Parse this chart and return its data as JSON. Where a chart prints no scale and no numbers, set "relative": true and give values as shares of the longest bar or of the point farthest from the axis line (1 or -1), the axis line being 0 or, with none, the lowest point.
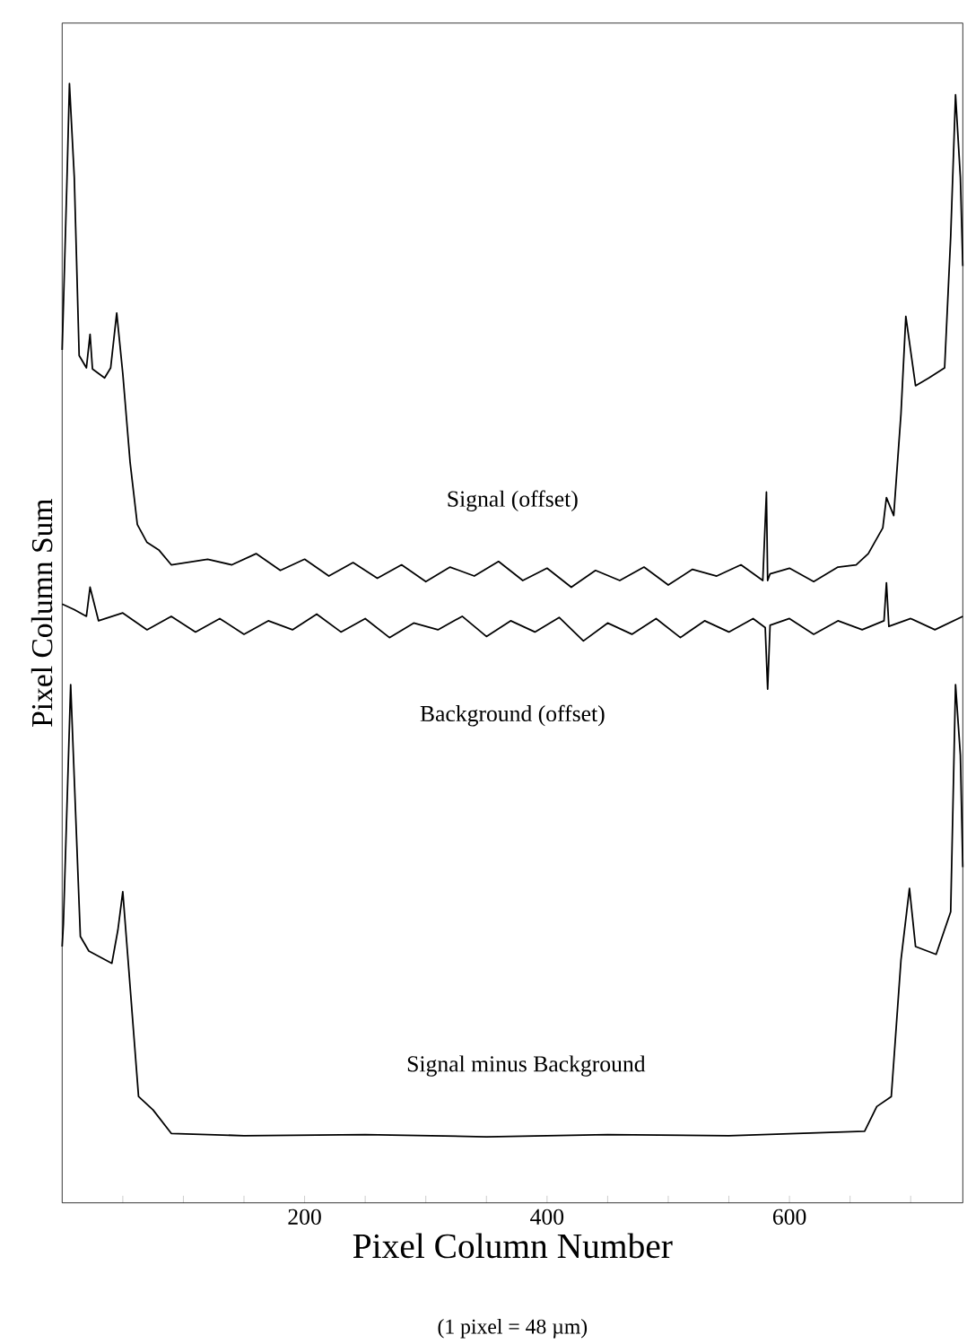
{
  "chart_data": {
    "type": "line",
    "relative": true,
    "xlabel": "Pixel Column Number",
    "ylabel": "Pixel Column Sum",
    "xlim": [
      0,
      743
    ],
    "xticks": [
      {
        "value": 50,
        "label": null
      },
      {
        "value": 100,
        "label": null
      },
      {
        "value": 150,
        "label": null
      },
      200,
      {
        "value": 250,
        "label": null
      },
      {
        "value": 300,
        "label": null
      },
      {
        "value": 350,
        "label": null
      },
      400,
      {
        "value": 450,
        "label": null
      },
      {
        "value": 500,
        "label": null
      },
      {
        "value": 550,
        "label": null
      },
      600,
      {
        "value": 650,
        "label": null
      },
      {
        "value": 700,
        "label": null
      }
    ],
    "grid": false,
    "marker": "none",
    "line_style": "solid",
    "series": [
      {
        "color": "#000000",
        "x": [
          0,
          4,
          6,
          10,
          14,
          20,
          23,
          25,
          35,
          40,
          45,
          50,
          56,
          62,
          70,
          80,
          90,
          120,
          140,
          160,
          180,
          200,
          220,
          240,
          260,
          280,
          300,
          320,
          340,
          360,
          380,
          400,
          420,
          440,
          460,
          480,
          500,
          520,
          540,
          560,
          578,
          581,
          582,
          584,
          600,
          620,
          640,
          655,
          665,
          677,
          680,
          686,
          692,
          696,
          704,
          715,
          728,
          733,
          737,
          741,
          743
        ],
        "values": [
          0.762,
          0.916,
          1.0,
          0.916,
          0.757,
          0.746,
          0.776,
          0.745,
          0.737,
          0.746,
          0.795,
          0.741,
          0.662,
          0.606,
          0.59,
          0.583,
          0.57,
          0.575,
          0.57,
          0.58,
          0.565,
          0.575,
          0.56,
          0.572,
          0.558,
          0.57,
          0.555,
          0.568,
          0.56,
          0.573,
          0.556,
          0.567,
          0.55,
          0.565,
          0.556,
          0.568,
          0.552,
          0.566,
          0.56,
          0.57,
          0.556,
          0.635,
          0.556,
          0.562,
          0.567,
          0.555,
          0.568,
          0.57,
          0.58,
          0.603,
          0.63,
          0.614,
          0.705,
          0.792,
          0.73,
          0.737,
          0.746,
          0.863,
          0.99,
          0.916,
          0.837
        ]
      },
      {
        "color": "#000000",
        "x": [
          0,
          10,
          20,
          23,
          30,
          50,
          70,
          90,
          110,
          130,
          150,
          170,
          190,
          210,
          230,
          250,
          270,
          290,
          310,
          330,
          350,
          370,
          390,
          410,
          430,
          450,
          470,
          490,
          510,
          530,
          550,
          570,
          580,
          582,
          584,
          600,
          620,
          640,
          660,
          678,
          680,
          682,
          700,
          720,
          743
        ],
        "values": [
          0.535,
          0.53,
          0.524,
          0.55,
          0.52,
          0.527,
          0.512,
          0.524,
          0.51,
          0.522,
          0.508,
          0.52,
          0.512,
          0.526,
          0.51,
          0.522,
          0.505,
          0.518,
          0.512,
          0.524,
          0.506,
          0.52,
          0.51,
          0.523,
          0.502,
          0.518,
          0.508,
          0.522,
          0.505,
          0.52,
          0.51,
          0.522,
          0.514,
          0.459,
          0.516,
          0.522,
          0.508,
          0.52,
          0.512,
          0.52,
          0.554,
          0.515,
          0.522,
          0.512,
          0.524
        ]
      },
      {
        "color": "#000000",
        "x": [
          0,
          1,
          7,
          15,
          22,
          41,
          46,
          50,
          54,
          63,
          75,
          90,
          150,
          250,
          350,
          450,
          550,
          662,
          672,
          684,
          692,
          699,
          704,
          721,
          733,
          737,
          741,
          743
        ],
        "values": [
          0.229,
          0.249,
          0.463,
          0.238,
          0.225,
          0.214,
          0.244,
          0.278,
          0.222,
          0.095,
          0.083,
          0.062,
          0.06,
          0.061,
          0.059,
          0.061,
          0.06,
          0.064,
          0.086,
          0.095,
          0.217,
          0.281,
          0.229,
          0.222,
          0.26,
          0.463,
          0.4,
          0.3
        ]
      }
    ],
    "annotations": [
      "Signal (offset)",
      "Background (offset)",
      "Signal minus Background",
      "(1 pixel = 48 µm)"
    ]
  }
}
